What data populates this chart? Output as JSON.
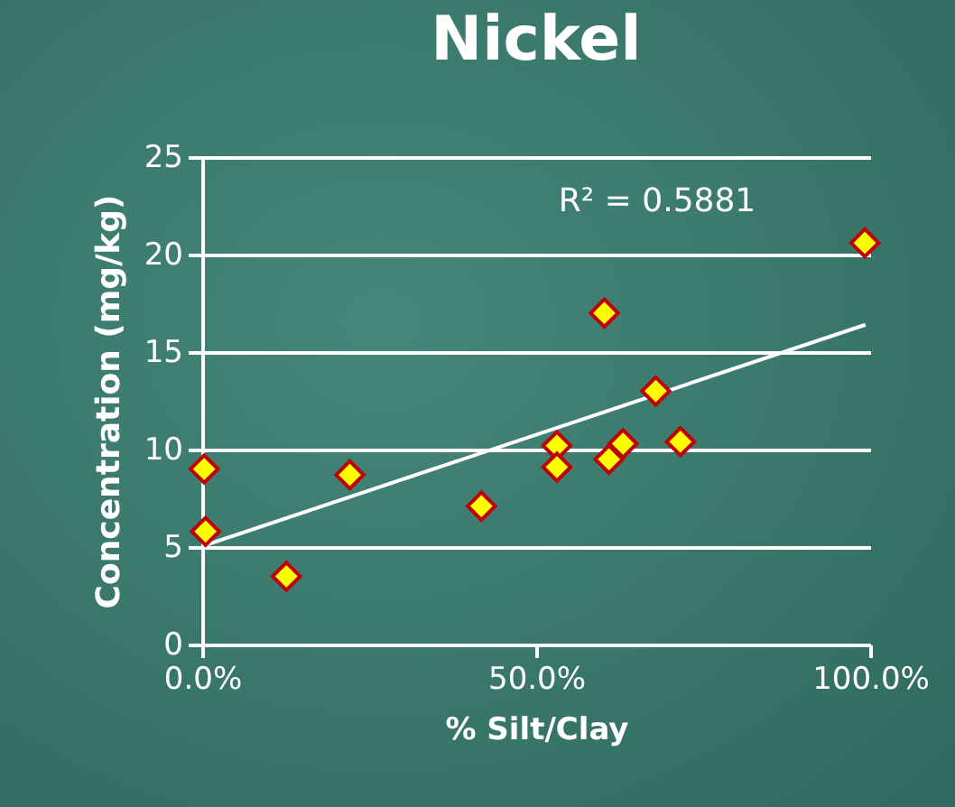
{
  "chart_data": {
    "type": "scatter",
    "title": "Nickel",
    "xlabel": "% Silt/Clay",
    "ylabel": "Concentration  (mg/kg)",
    "x": [
      0.3,
      0.5,
      12.6,
      22.1,
      41.8,
      60.2,
      53.1,
      53.1,
      60.9,
      63.0,
      67.9,
      71.6,
      99.2
    ],
    "series": [
      {
        "color": "#ffff00",
        "values": [
          9.0,
          5.8,
          3.5,
          8.7,
          7.1,
          17.0,
          10.2,
          9.1,
          9.5,
          10.3,
          13.0,
          10.4,
          20.6
        ]
      },
      {
        "type": "line",
        "marker": "none",
        "color": "#ffffff",
        "x": [
          0.5,
          99.3
        ],
        "values": [
          5.1,
          16.4
        ]
      }
    ],
    "annotations": [
      "R² = 0.5881"
    ],
    "xlim": [
      0,
      100
    ],
    "xticks": [
      {
        "value": 0,
        "label": "0.0%"
      },
      {
        "value": 50,
        "label": "50.0%"
      },
      {
        "value": 100,
        "label": "100.0%"
      }
    ],
    "ylim": [
      0,
      25
    ],
    "yticks": [
      0,
      5,
      10,
      15,
      20,
      25
    ],
    "grid": "y",
    "marker": "diamond",
    "line_style": "solid"
  }
}
